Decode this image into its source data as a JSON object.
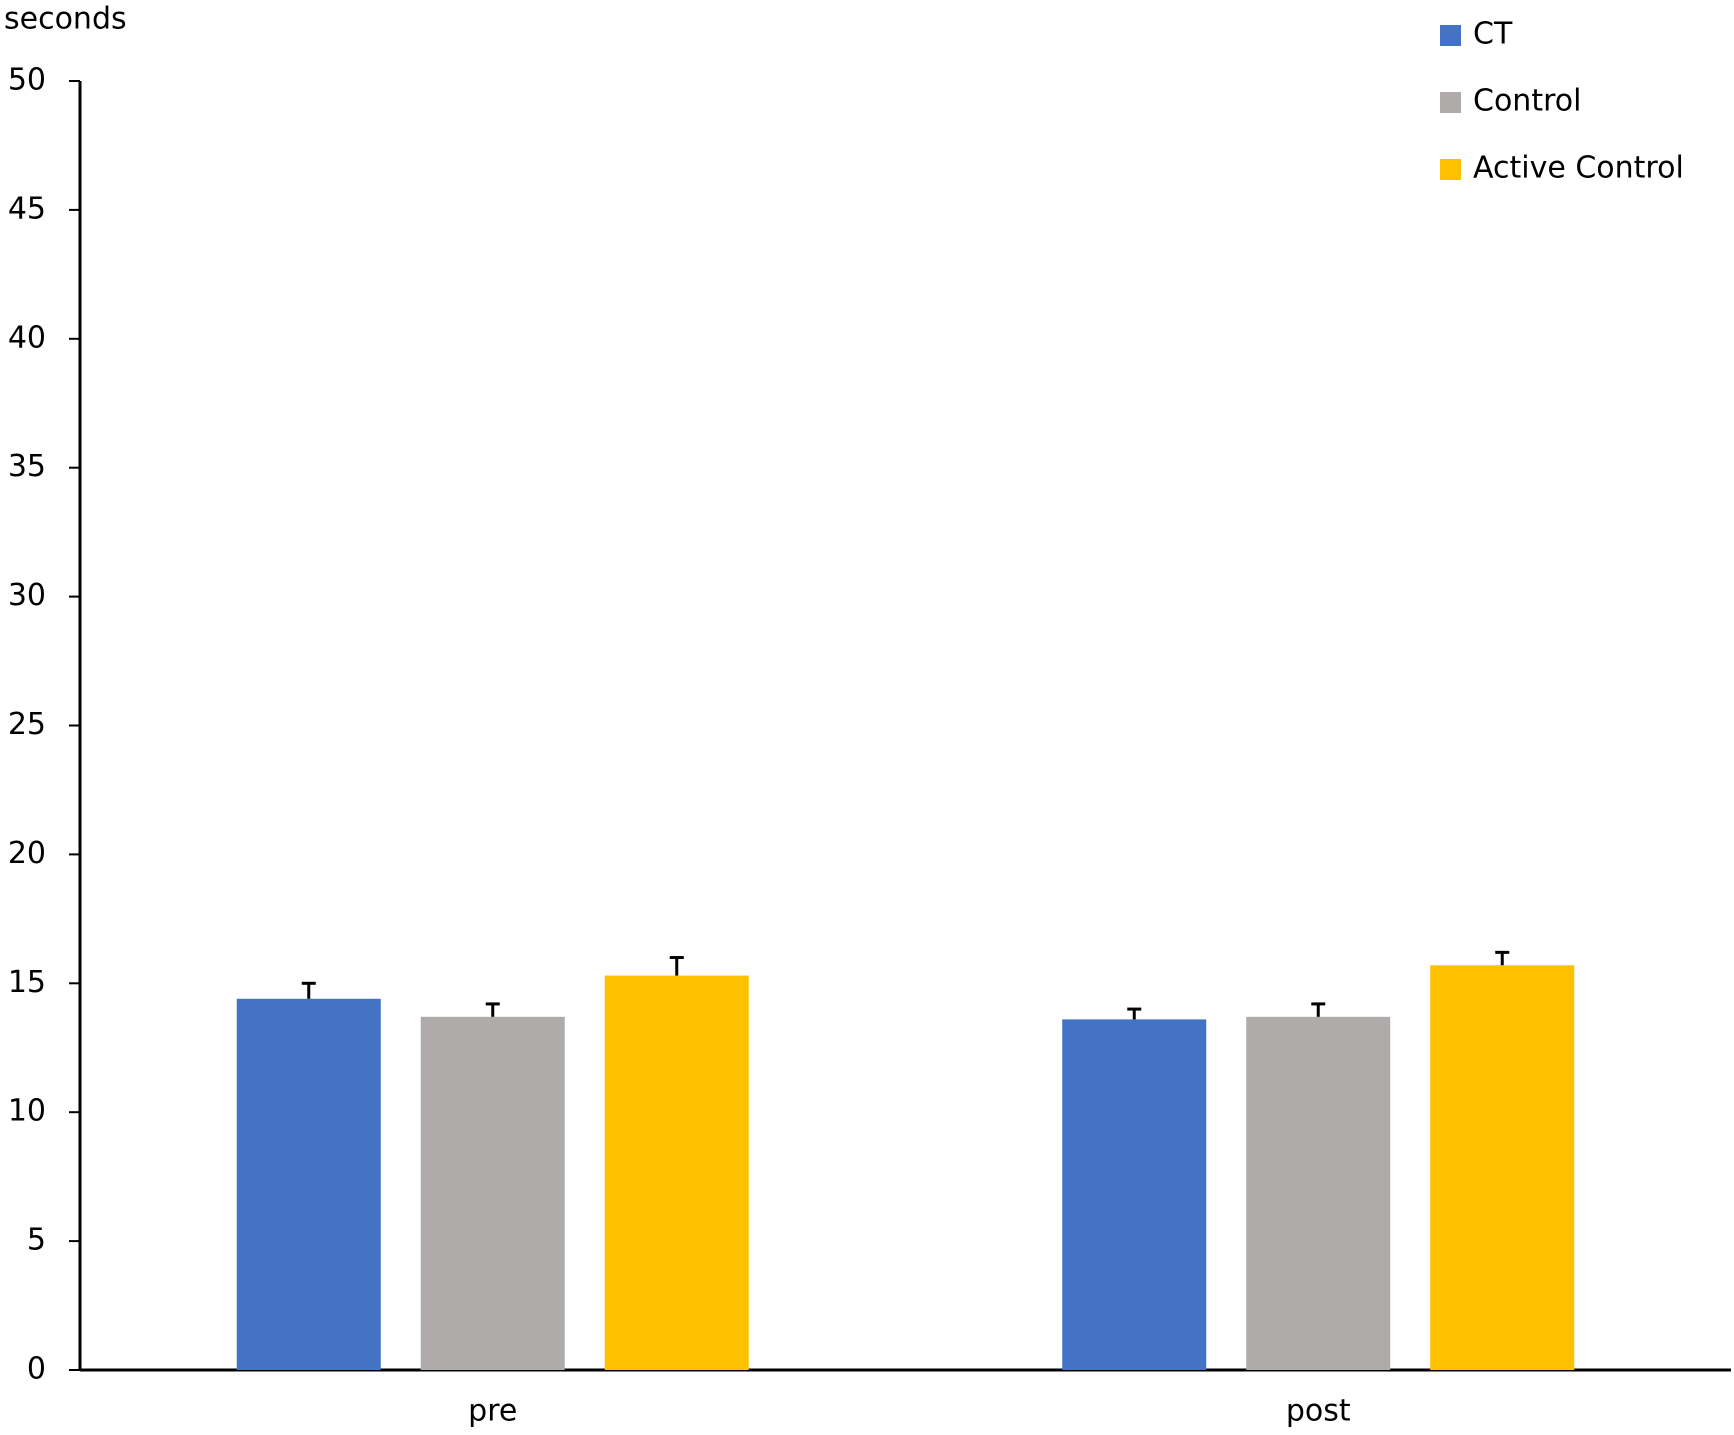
{
  "chart_data": {
    "type": "bar",
    "y_label": "seconds",
    "categories": [
      "pre",
      "post"
    ],
    "series": [
      {
        "name": "CT",
        "color": "#4472c4",
        "values": [
          14.4,
          13.6
        ],
        "errors": [
          0.6,
          0.4
        ]
      },
      {
        "name": "Control",
        "color": "#afabab",
        "values": [
          13.7,
          13.7
        ],
        "errors": [
          0.5,
          0.5
        ]
      },
      {
        "name": "Active Control",
        "color": "#ffc000",
        "values": [
          15.3,
          15.7
        ],
        "errors": [
          0.7,
          0.5
        ]
      }
    ],
    "ylim": [
      0,
      50
    ],
    "yticks": [
      0,
      5,
      10,
      15,
      20,
      25,
      30,
      35,
      40,
      45,
      50
    ],
    "grid": false,
    "legend": "top-right"
  }
}
